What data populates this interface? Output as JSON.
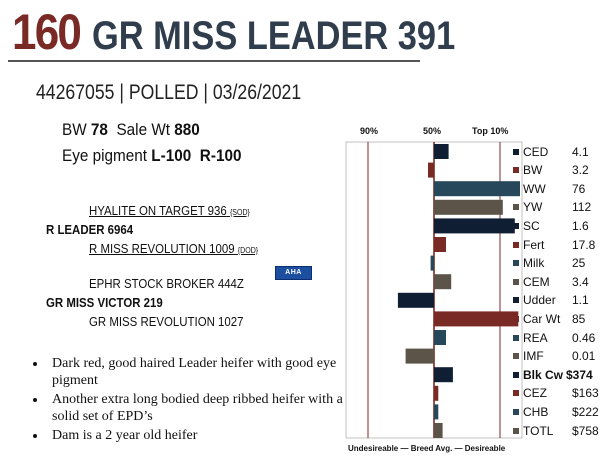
{
  "header": {
    "lot_number": "160",
    "animal_name": "GR MISS LEADER 391"
  },
  "registration_line": "44267055 | POLLED | 03/26/2021",
  "stats": {
    "bw_label": "BW",
    "bw_value": "78",
    "sale_wt_label": "Sale Wt",
    "sale_wt_value": "880",
    "eye_label": "Eye pigment",
    "eye_left": "L-100",
    "eye_right": "R-100"
  },
  "pedigree": {
    "sire_sire": "HYALITE ON TARGET 936",
    "sire_sire_tag": "{SOD}",
    "sire": "R LEADER 6964",
    "sire_dam": "R MISS REVOLUTION 1009",
    "sire_dam_tag": "{DOD}",
    "dam_sire": "EPHR STOCK BROKER 444Z",
    "dam": "GR MISS VICTOR 219",
    "dam_dam": "GR MISS REVOLUTION 1027",
    "logo_text": "AHA"
  },
  "bullets": [
    "Dark red, good haired Leader heifer with good eye pigment",
    "Another extra long bodied deep ribbed heifer with a solid set of EPD’s",
    "Dam is a 2 year old heifer"
  ],
  "chart_data": {
    "type": "bar",
    "orientation": "horizontal",
    "percentile_markers": [
      "90%",
      "50%",
      "Top 10%"
    ],
    "footer": "Undesireable — Breed Avg. — Desireable",
    "colors": {
      "navy": "#0f1e33",
      "red": "#7a2a24",
      "teal": "#27475a",
      "olive": "#5c5448",
      "grey": "#3c3c3c"
    },
    "traits": [
      {
        "name": "CED",
        "value": "4.1",
        "bar": 0.17,
        "color": "#0f1e33"
      },
      {
        "name": "BW",
        "value": "3.2",
        "bar": -0.07,
        "color": "#7a2a24"
      },
      {
        "name": "WW",
        "value": "76",
        "bar": 1.0,
        "color": "#27475a"
      },
      {
        "name": "YW",
        "value": "112",
        "bar": 0.8,
        "color": "#5c5448"
      },
      {
        "name": "SC",
        "value": "1.6",
        "bar": 0.94,
        "color": "#0f1e33"
      },
      {
        "name": "Fert",
        "value": "17.8",
        "bar": 0.14,
        "color": "#7a2a24"
      },
      {
        "name": "Milk",
        "value": "25",
        "bar": -0.04,
        "color": "#27475a"
      },
      {
        "name": "CEM",
        "value": "3.4",
        "bar": 0.2,
        "color": "#5c5448"
      },
      {
        "name": "Udder",
        "value": "1.1",
        "bar": -0.42,
        "color": "#0f1e33"
      },
      {
        "name": "Car Wt",
        "value": "85",
        "bar": 0.98,
        "color": "#7a2a24"
      },
      {
        "name": "REA",
        "value": "0.46",
        "bar": 0.14,
        "color": "#27475a"
      },
      {
        "name": "IMF",
        "value": "0.01",
        "bar": -0.33,
        "color": "#5c5448"
      },
      {
        "name": "Blk Cw",
        "value": "$374",
        "bar": 0.22,
        "color": "#0f1e33",
        "bold": true
      },
      {
        "name": "CEZ",
        "value": "$163",
        "bar": 0.05,
        "color": "#7a2a24"
      },
      {
        "name": "CHB",
        "value": "$222",
        "bar": 0.05,
        "color": "#27475a"
      },
      {
        "name": "TOTL",
        "value": "$758",
        "bar": 0.1,
        "color": "#5c5448"
      }
    ]
  }
}
